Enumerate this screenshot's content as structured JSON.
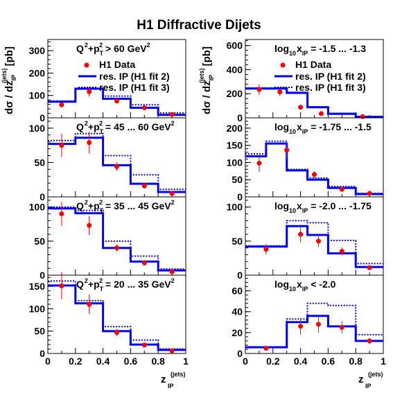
{
  "title": "H1 Diffractive Dijets",
  "x_axis": {
    "label": "z",
    "sup": "(jets)",
    "sub": "IP",
    "ticks": [
      "0",
      "0.2",
      "0.4",
      "0.6",
      "0.8",
      "1"
    ]
  },
  "y_axis": {
    "left": {
      "pre": "dσ / dz",
      "sup": "(jets)",
      "sub": "IP",
      "unit": "[pb]"
    },
    "right": {
      "pre": "dσ / dz",
      "sup": "(jets)",
      "sub": "IP",
      "unit": "[pb]"
    }
  },
  "legend": {
    "data": "H1 Data",
    "fit2": "res. IP (H1 fit 2)",
    "fit3": "res. IP (H1 fit 3)"
  },
  "colors": {
    "data": "#ff0000",
    "fit2": "#0000ff",
    "fit3": "#0000ff",
    "frame": "#000000"
  },
  "chart_data": [
    {
      "id": "L1",
      "type": "histogram",
      "label_parts": [
        "Q",
        "2",
        "+p",
        "T",
        "2",
        " > 60 GeV",
        "2"
      ],
      "ylim": [
        0,
        350
      ],
      "yticks": [
        0,
        100,
        200,
        300
      ],
      "bins": [
        0,
        0.2,
        0.4,
        0.6,
        0.8,
        1
      ],
      "fit2": [
        72,
        130,
        85,
        45,
        13
      ],
      "fit3": [
        75,
        132,
        97,
        58,
        22
      ],
      "points": [
        {
          "x": 0.1,
          "y": 58,
          "err": 8
        },
        {
          "x": 0.3,
          "y": 117,
          "err": 22
        },
        {
          "x": 0.5,
          "y": 75,
          "err": 9
        },
        {
          "x": 0.7,
          "y": 45,
          "err": 6
        },
        {
          "x": 0.9,
          "y": 15,
          "err": 3
        }
      ]
    },
    {
      "id": "L2",
      "type": "histogram",
      "label_parts": [
        "Q",
        "2",
        "+p",
        "T",
        "2",
        " = 45 ... 60 GeV",
        "2"
      ],
      "ylim": [
        0,
        115
      ],
      "yticks": [
        0,
        50,
        100
      ],
      "bins": [
        0,
        0.2,
        0.4,
        0.6,
        0.8,
        1
      ],
      "fit2": [
        77,
        86,
        46,
        19,
        7
      ],
      "fit3": [
        82,
        92,
        60,
        32,
        11
      ],
      "points": [
        {
          "x": 0.1,
          "y": 75,
          "err": 17
        },
        {
          "x": 0.3,
          "y": 79,
          "err": 16
        },
        {
          "x": 0.5,
          "y": 44,
          "err": 6
        },
        {
          "x": 0.7,
          "y": 16,
          "err": 4
        },
        {
          "x": 0.9,
          "y": 5,
          "err": 2
        }
      ]
    },
    {
      "id": "L3",
      "type": "histogram",
      "label_parts": [
        "Q",
        "2",
        "+p",
        "T",
        "2",
        " = 35 ... 45 GeV",
        "2"
      ],
      "ylim": [
        0,
        115
      ],
      "yticks": [
        0,
        50,
        100
      ],
      "bins": [
        0,
        0.2,
        0.4,
        0.6,
        0.8,
        1
      ],
      "fit2": [
        98,
        91,
        40,
        20,
        7
      ],
      "fit3": [
        100,
        95,
        50,
        28,
        9
      ],
      "points": [
        {
          "x": 0.1,
          "y": 90,
          "err": 18
        },
        {
          "x": 0.3,
          "y": 73,
          "err": 14
        },
        {
          "x": 0.5,
          "y": 40,
          "err": 5
        },
        {
          "x": 0.7,
          "y": 18,
          "err": 4
        },
        {
          "x": 0.9,
          "y": 5,
          "err": 2
        }
      ]
    },
    {
      "id": "L4",
      "type": "histogram",
      "label_parts": [
        "Q",
        "2",
        "+p",
        "T",
        "2",
        " = 20 ... 35 GeV",
        "2"
      ],
      "ylim": [
        0,
        175
      ],
      "yticks": [
        0,
        50,
        100,
        150
      ],
      "bins": [
        0,
        0.2,
        0.4,
        0.6,
        0.8,
        1
      ],
      "fit2": [
        152,
        112,
        50,
        20,
        8
      ],
      "fit3": [
        162,
        118,
        60,
        30,
        10
      ],
      "points": [
        {
          "x": 0.1,
          "y": 151,
          "err": 30
        },
        {
          "x": 0.3,
          "y": 110,
          "err": 22
        },
        {
          "x": 0.5,
          "y": 47,
          "err": 8
        },
        {
          "x": 0.7,
          "y": 19,
          "err": 4
        },
        {
          "x": 0.9,
          "y": 6,
          "err": 2
        }
      ]
    },
    {
      "id": "R1",
      "type": "histogram",
      "label_parts": [
        "log",
        "10",
        "x",
        "IP",
        " = -1.5 ... -1.3"
      ],
      "ylim": [
        0,
        650
      ],
      "yticks": [
        0,
        200,
        400,
        600
      ],
      "bins": [
        0,
        0.3,
        0.45,
        0.6,
        0.8,
        1
      ],
      "fit2": [
        243,
        207,
        88,
        33,
        8
      ],
      "fit3": [
        248,
        212,
        92,
        38,
        11
      ],
      "points": [
        {
          "x": 0.1,
          "y": 235,
          "err": 45
        },
        {
          "x": 0.25,
          "y": 215,
          "err": 35
        },
        {
          "x": 0.4,
          "y": 88,
          "err": 10
        },
        {
          "x": 0.55,
          "y": 35,
          "err": 6
        },
        {
          "x": 0.85,
          "y": 10,
          "err": 3
        }
      ]
    },
    {
      "id": "R2",
      "type": "histogram",
      "label_parts": [
        "log",
        "10",
        "x",
        "IP",
        " = -1.75 ... -1.5"
      ],
      "ylim": [
        0,
        230
      ],
      "yticks": [
        0,
        50,
        100,
        150,
        200
      ],
      "bins": [
        0,
        0.15,
        0.3,
        0.45,
        0.6,
        0.8,
        1
      ],
      "fit2": [
        118,
        155,
        77,
        50,
        26,
        8
      ],
      "fit3": [
        125,
        162,
        80,
        55,
        30,
        10
      ],
      "points": [
        {
          "x": 0.1,
          "y": 98,
          "err": 25
        },
        {
          "x": 0.3,
          "y": 136,
          "err": 25
        },
        {
          "x": 0.5,
          "y": 65,
          "err": 10
        },
        {
          "x": 0.7,
          "y": 22,
          "err": 5
        },
        {
          "x": 0.9,
          "y": 10,
          "err": 3
        }
      ]
    },
    {
      "id": "R3",
      "type": "histogram",
      "label_parts": [
        "log",
        "10",
        "x",
        "IP",
        " = -2.0 ... -1.75"
      ],
      "ylim": [
        0,
        115
      ],
      "yticks": [
        0,
        50,
        100
      ],
      "bins": [
        0,
        0.3,
        0.45,
        0.6,
        0.8,
        1
      ],
      "fit2": [
        42,
        72,
        59,
        32,
        12
      ],
      "fit3": [
        43,
        80,
        77,
        51,
        17
      ],
      "points": [
        {
          "x": 0.15,
          "y": 38,
          "err": 8
        },
        {
          "x": 0.4,
          "y": 60,
          "err": 12
        },
        {
          "x": 0.53,
          "y": 50,
          "err": 9
        },
        {
          "x": 0.7,
          "y": 35,
          "err": 6
        },
        {
          "x": 0.9,
          "y": 11,
          "err": 3
        }
      ]
    },
    {
      "id": "R4",
      "type": "histogram",
      "label_parts": [
        "log",
        "10",
        "x",
        "IP",
        " < -2.0"
      ],
      "ylim": [
        0,
        75
      ],
      "yticks": [
        0,
        20,
        40,
        60
      ],
      "bins": [
        0,
        0.3,
        0.45,
        0.6,
        0.8,
        1
      ],
      "fit2": [
        6,
        30,
        36,
        26,
        12
      ],
      "fit3": [
        6,
        33,
        48,
        46,
        18
      ],
      "points": [
        {
          "x": 0.15,
          "y": 5,
          "err": 2
        },
        {
          "x": 0.4,
          "y": 26,
          "err": 8
        },
        {
          "x": 0.53,
          "y": 28,
          "err": 8
        },
        {
          "x": 0.7,
          "y": 25,
          "err": 6
        },
        {
          "x": 0.9,
          "y": 12,
          "err": 3
        }
      ]
    }
  ]
}
